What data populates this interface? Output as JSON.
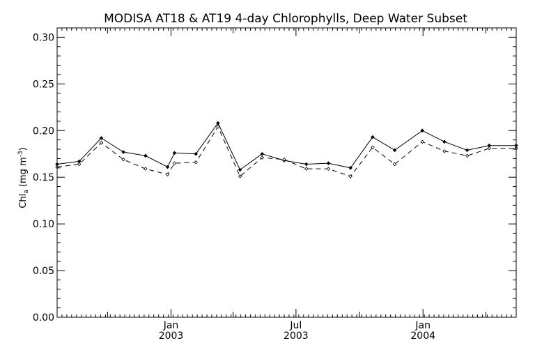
{
  "chart_data": {
    "type": "line",
    "title": "MODISA AT18 & AT19 4-day Chlorophylls, Deep Water Subset",
    "ylabel": "Chl_a (mg m^-3)",
    "ylabel_parts": {
      "main": "Chl",
      "sub": "a",
      "unit_open": " (mg m",
      "sup": "-3",
      "unit_close": ")"
    },
    "ylim": [
      0.0,
      0.31
    ],
    "yticks": [
      "0.00",
      "0.05",
      "0.10",
      "0.15",
      "0.20",
      "0.25",
      "0.30"
    ],
    "yticks_values": [
      0.0,
      0.05,
      0.1,
      0.15,
      0.2,
      0.25,
      0.3
    ],
    "xlim": [
      "2002-07-20",
      "2004-05-15"
    ],
    "x_major_ticks": [
      {
        "date": "2003-01-01",
        "label": "Jan",
        "year": "2003"
      },
      {
        "date": "2003-07-01",
        "label": "Jul",
        "year": "2003"
      },
      {
        "date": "2004-01-01",
        "label": "Jan",
        "year": "2004"
      }
    ],
    "x_minor_ticks": [
      "2002-10-01",
      "2003-04-01",
      "2003-10-01",
      "2004-04-01"
    ],
    "grid": false,
    "legend": "none",
    "x": [
      "2002-07-20",
      "2002-08-21",
      "2002-09-22",
      "2002-10-24",
      "2002-11-25",
      "2002-12-27",
      "2003-01-06",
      "2003-02-06",
      "2003-03-10",
      "2003-04-11",
      "2003-05-13",
      "2003-06-14",
      "2003-07-16",
      "2003-08-17",
      "2003-09-18",
      "2003-10-20",
      "2003-11-21",
      "2003-12-31",
      "2004-02-01",
      "2004-03-05",
      "2004-04-06",
      "2004-05-15"
    ],
    "series": [
      {
        "style": "solid",
        "color": "#000000",
        "values": [
          0.164,
          0.167,
          0.192,
          0.177,
          0.173,
          0.161,
          0.176,
          0.175,
          0.208,
          0.158,
          0.175,
          0.168,
          0.164,
          0.165,
          0.16,
          0.193,
          0.179,
          0.2,
          0.188,
          0.179,
          0.184,
          0.184
        ]
      },
      {
        "style": "dashed",
        "color": "#000000",
        "values": [
          0.161,
          0.164,
          0.187,
          0.169,
          0.159,
          0.153,
          0.165,
          0.166,
          0.204,
          0.151,
          0.171,
          0.169,
          0.159,
          0.159,
          0.151,
          0.182,
          0.164,
          0.188,
          0.178,
          0.173,
          0.181,
          0.181
        ]
      }
    ]
  }
}
